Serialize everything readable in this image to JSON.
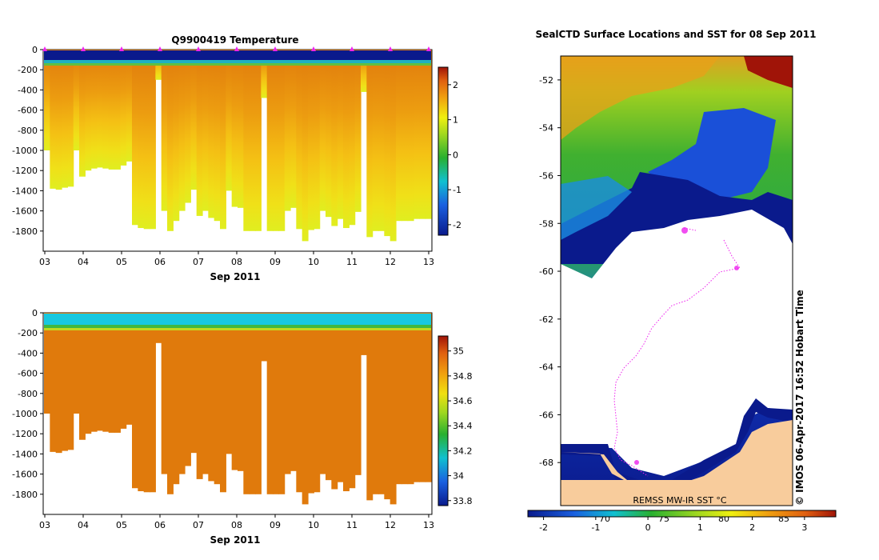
{
  "colors": {
    "deep_blue": "#0a1a8c",
    "ocean_orange": "#e88a10",
    "land": "#f8cc9c",
    "ice": "#ffffff",
    "track": "#ee22ee"
  },
  "chart_data": [
    {
      "type": "heatmap",
      "title": "Q9900419  Temperature",
      "xlabel": "Sep 2011",
      "ylabel": "",
      "x_ticks": [
        "03",
        "04",
        "05",
        "06",
        "07",
        "08",
        "09",
        "10",
        "11",
        "12",
        "13"
      ],
      "y_ticks": [
        "0",
        "-200",
        "-400",
        "-600",
        "-800",
        "-1000",
        "-1200",
        "-1400",
        "-1600",
        "-1800"
      ],
      "ylim": [
        -2000,
        0
      ],
      "colorbar_ticks": [
        "2",
        "1",
        "0",
        "-1",
        "-2"
      ],
      "colorbar_range": [
        -2.3,
        2.5
      ],
      "profile_depths": [
        1000,
        1380,
        1390,
        1370,
        1360,
        1000,
        1260,
        1200,
        1180,
        1170,
        1180,
        1190,
        1190,
        1150,
        1110,
        1740,
        1770,
        1780,
        1780,
        300,
        1600,
        1800,
        1700,
        1600,
        1520,
        1390,
        1650,
        1600,
        1670,
        1700,
        1780,
        1400,
        1560,
        1570,
        1800,
        1800,
        1800,
        480,
        1800,
        1800,
        1800,
        1600,
        1570,
        1780,
        1900,
        1790,
        1780,
        1600,
        1660,
        1750,
        1680,
        1770,
        1740,
        1610,
        420,
        1860,
        1800,
        1800,
        1850,
        1900,
        1700,
        1700,
        1700,
        1680,
        1680,
        1680
      ],
      "surface_markers": [
        "03",
        "04",
        "05",
        "06",
        "07",
        "08",
        "09",
        "10",
        "11",
        "12",
        "13"
      ]
    },
    {
      "type": "heatmap",
      "title": "",
      "xlabel": "Sep 2011",
      "ylabel": "",
      "x_ticks": [
        "03",
        "04",
        "05",
        "06",
        "07",
        "08",
        "09",
        "10",
        "11",
        "12",
        "13"
      ],
      "y_ticks": [
        "0",
        "-200",
        "-400",
        "-600",
        "-800",
        "-1000",
        "-1200",
        "-1400",
        "-1600",
        "-1800"
      ],
      "ylim": [
        -2000,
        0
      ],
      "colorbar_ticks": [
        "35",
        "34.8",
        "34.6",
        "34.4",
        "34.2",
        "34",
        "33.8"
      ],
      "colorbar_range": [
        33.76,
        35.12
      ]
    },
    {
      "type": "heatmap",
      "title": "SealCTD Surface Locations and SST for 08 Sep 2011",
      "xlabel": "",
      "ylabel": "",
      "y_ticks": [
        "-52",
        "-54",
        "-56",
        "-58",
        "-60",
        "-62",
        "-64",
        "-66",
        "-68"
      ],
      "ylim": [
        -69.8,
        -51.0
      ],
      "source_label": "REMSS MW-IR SST °C",
      "colorbar_ticks": [
        "-2",
        "-1",
        "0",
        "1",
        "2",
        "3"
      ],
      "colorbar_range": [
        -2.3,
        3.6
      ],
      "inner_lon_ticks": [
        "70",
        "75",
        "80",
        "85"
      ],
      "credit": "© IMOS 06-Apr-2017 16:52 Hobart Time"
    }
  ]
}
